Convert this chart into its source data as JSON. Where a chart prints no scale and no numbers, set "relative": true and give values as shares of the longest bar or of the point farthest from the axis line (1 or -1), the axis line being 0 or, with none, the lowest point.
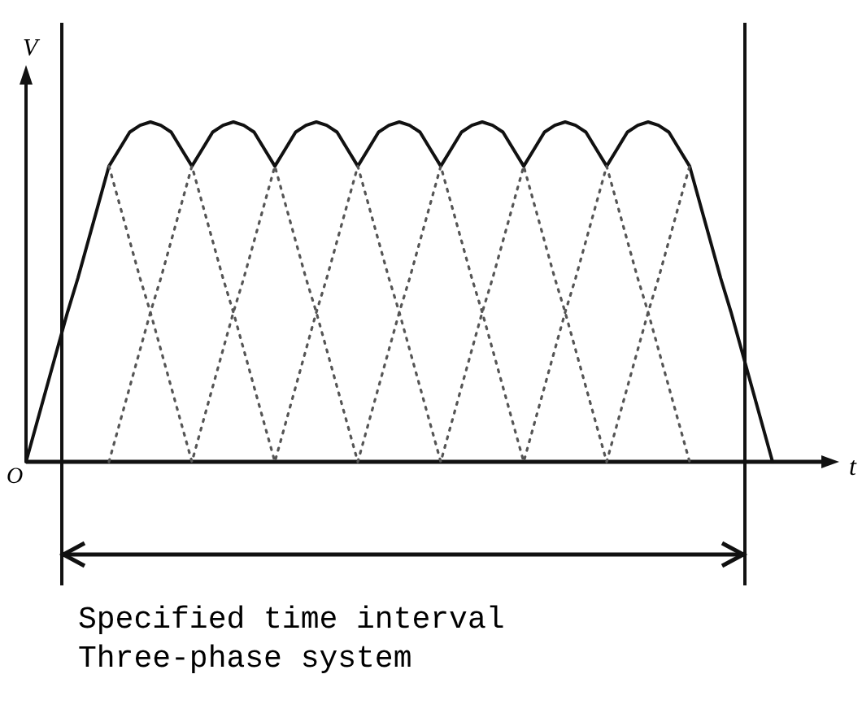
{
  "chart_data": {
    "type": "line",
    "relative": true,
    "xlabel": "t",
    "ylabel": "V",
    "marker": "none",
    "categories": [
      null,
      null,
      null,
      null,
      null,
      null,
      null,
      null,
      null,
      null,
      null,
      null,
      null,
      null,
      null,
      null,
      null,
      null,
      null,
      null,
      null,
      null,
      null,
      null,
      null,
      null,
      null,
      null,
      null,
      null,
      null,
      null,
      null,
      null,
      null,
      null,
      null,
      null,
      null,
      null,
      null,
      null,
      null,
      null,
      null,
      null,
      null,
      null,
      null,
      null,
      null,
      null,
      null,
      null,
      null,
      null,
      null,
      null,
      null,
      null,
      null,
      null,
      null,
      null,
      null,
      null,
      null,
      null,
      null,
      null,
      null,
      null,
      null
    ],
    "series": [
      {
        "color": "#111111",
        "line_style": "solid",
        "values": [
          0,
          0.11,
          0.22,
          0.33,
          0.44,
          0.54,
          0.65,
          0.76,
          0.87,
          0.92,
          0.97,
          0.99,
          1,
          0.99,
          0.97,
          0.92,
          0.87,
          0.92,
          0.97,
          0.99,
          1,
          0.99,
          0.97,
          0.92,
          0.87,
          0.92,
          0.97,
          0.99,
          1,
          0.99,
          0.97,
          0.92,
          0.87,
          0.92,
          0.97,
          0.99,
          1,
          0.99,
          0.97,
          0.92,
          0.87,
          0.92,
          0.97,
          0.99,
          1,
          0.99,
          0.97,
          0.92,
          0.87,
          0.92,
          0.97,
          0.99,
          1,
          0.99,
          0.97,
          0.92,
          0.87,
          0.92,
          0.97,
          0.99,
          1,
          0.99,
          0.97,
          0.92,
          0.87,
          0.76,
          0.65,
          0.54,
          0.44,
          0.33,
          0.22,
          0.11,
          0
        ]
      },
      {
        "color": "#555555",
        "line_style": "dotted",
        "values": [
          null,
          null,
          null,
          null,
          null,
          null,
          null,
          null,
          0.87,
          0.76,
          0.65,
          0.54,
          0.44,
          0.33,
          0.22,
          0.11,
          0,
          0.11,
          0.22,
          0.33,
          0.44,
          0.54,
          0.65,
          0.76,
          0.87,
          0.76,
          0.65,
          0.54,
          0.44,
          0.33,
          0.22,
          0.11,
          0,
          0.11,
          0.22,
          0.33,
          0.44,
          0.54,
          0.65,
          0.76,
          0.87,
          0.76,
          0.65,
          0.54,
          0.44,
          0.33,
          0.22,
          0.11,
          0,
          0.11,
          0.22,
          0.33,
          0.44,
          0.54,
          0.65,
          0.76,
          0.87,
          0.76,
          0.65,
          0.54,
          0.44,
          0.33,
          0.22,
          0.11,
          0,
          null,
          null,
          null,
          null,
          null,
          null,
          null,
          null
        ]
      },
      {
        "color": "#555555",
        "line_style": "dotted",
        "values": [
          null,
          null,
          null,
          null,
          null,
          null,
          null,
          null,
          0,
          0.11,
          0.22,
          0.33,
          0.44,
          0.54,
          0.65,
          0.76,
          0.87,
          0.76,
          0.65,
          0.54,
          0.44,
          0.33,
          0.22,
          0.11,
          0,
          0.11,
          0.22,
          0.33,
          0.44,
          0.54,
          0.65,
          0.76,
          0.87,
          0.76,
          0.65,
          0.54,
          0.44,
          0.33,
          0.22,
          0.11,
          0,
          0.11,
          0.22,
          0.33,
          0.44,
          0.54,
          0.65,
          0.76,
          0.87,
          0.76,
          0.65,
          0.54,
          0.44,
          0.33,
          0.22,
          0.11,
          0,
          0.11,
          0.22,
          0.33,
          0.44,
          0.54,
          0.65,
          0.76,
          0.87,
          null,
          null,
          null,
          null,
          null,
          null,
          null,
          null
        ]
      }
    ],
    "annotations": [
      "O",
      "Specified time interval",
      "Three-phase system"
    ]
  }
}
